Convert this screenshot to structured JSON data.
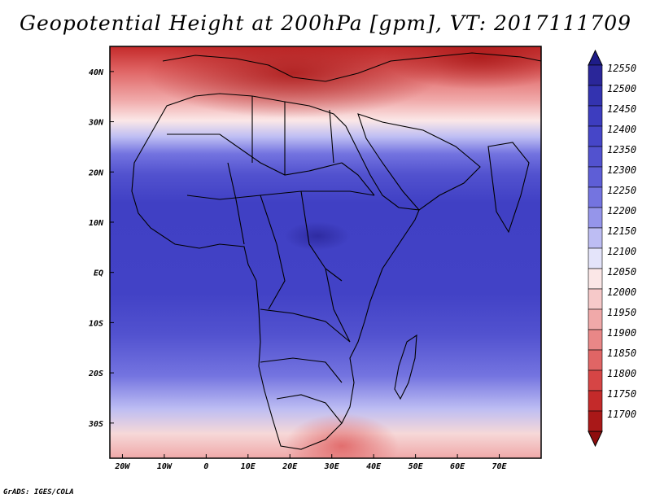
{
  "title": "Geopotential Height at 200hPa [gpm], VT: 2017111709",
  "footer": "GrADS: IGES/COLA",
  "map": {
    "lon_range": [
      -23,
      80
    ],
    "lat_range": [
      -37,
      45
    ],
    "x_ticks": [
      "20W",
      "10W",
      "0",
      "10E",
      "20E",
      "30E",
      "40E",
      "50E",
      "60E",
      "70E"
    ],
    "y_ticks": [
      "40N",
      "30N",
      "20N",
      "10N",
      "EQ",
      "10S",
      "20S",
      "30S"
    ]
  },
  "colorbar": {
    "levels": [
      "12550",
      "12500",
      "12450",
      "12400",
      "12350",
      "12300",
      "12250",
      "12200",
      "12150",
      "12100",
      "12050",
      "12000",
      "11950",
      "11900",
      "11850",
      "11800",
      "11750",
      "11700"
    ],
    "colors": [
      "#2a2699",
      "#3333b0",
      "#3d3dbf",
      "#4646c8",
      "#5252cf",
      "#5e5ed6",
      "#7474e0",
      "#9595ea",
      "#bdbdf3",
      "#e4e4fa",
      "#fbe7e7",
      "#f6c9c9",
      "#f0a9a9",
      "#e98787",
      "#e06565",
      "#d64545",
      "#c42a2a",
      "#a91818"
    ]
  }
}
